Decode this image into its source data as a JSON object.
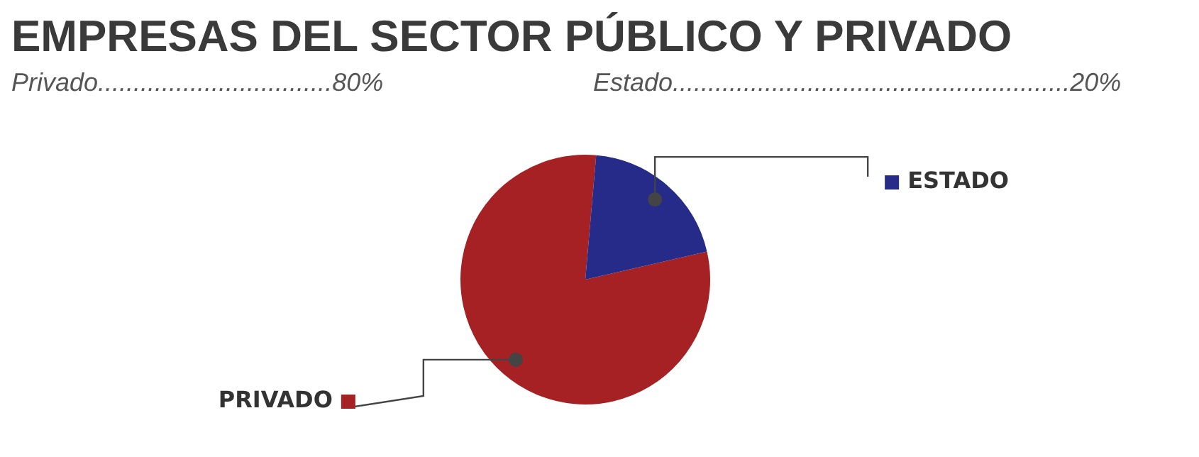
{
  "chart_data": {
    "type": "pie",
    "title": "EMPRESAS DEL SECTOR PÚBLICO Y PRIVADO",
    "annotations": [
      "Privado.................................80%",
      "Estado........................................................20%"
    ],
    "categories": [
      "PRIVADO",
      "ESTADO"
    ],
    "values": [
      80,
      20
    ],
    "colors": [
      "#a52124",
      "#262b8a"
    ],
    "legend": "right"
  }
}
